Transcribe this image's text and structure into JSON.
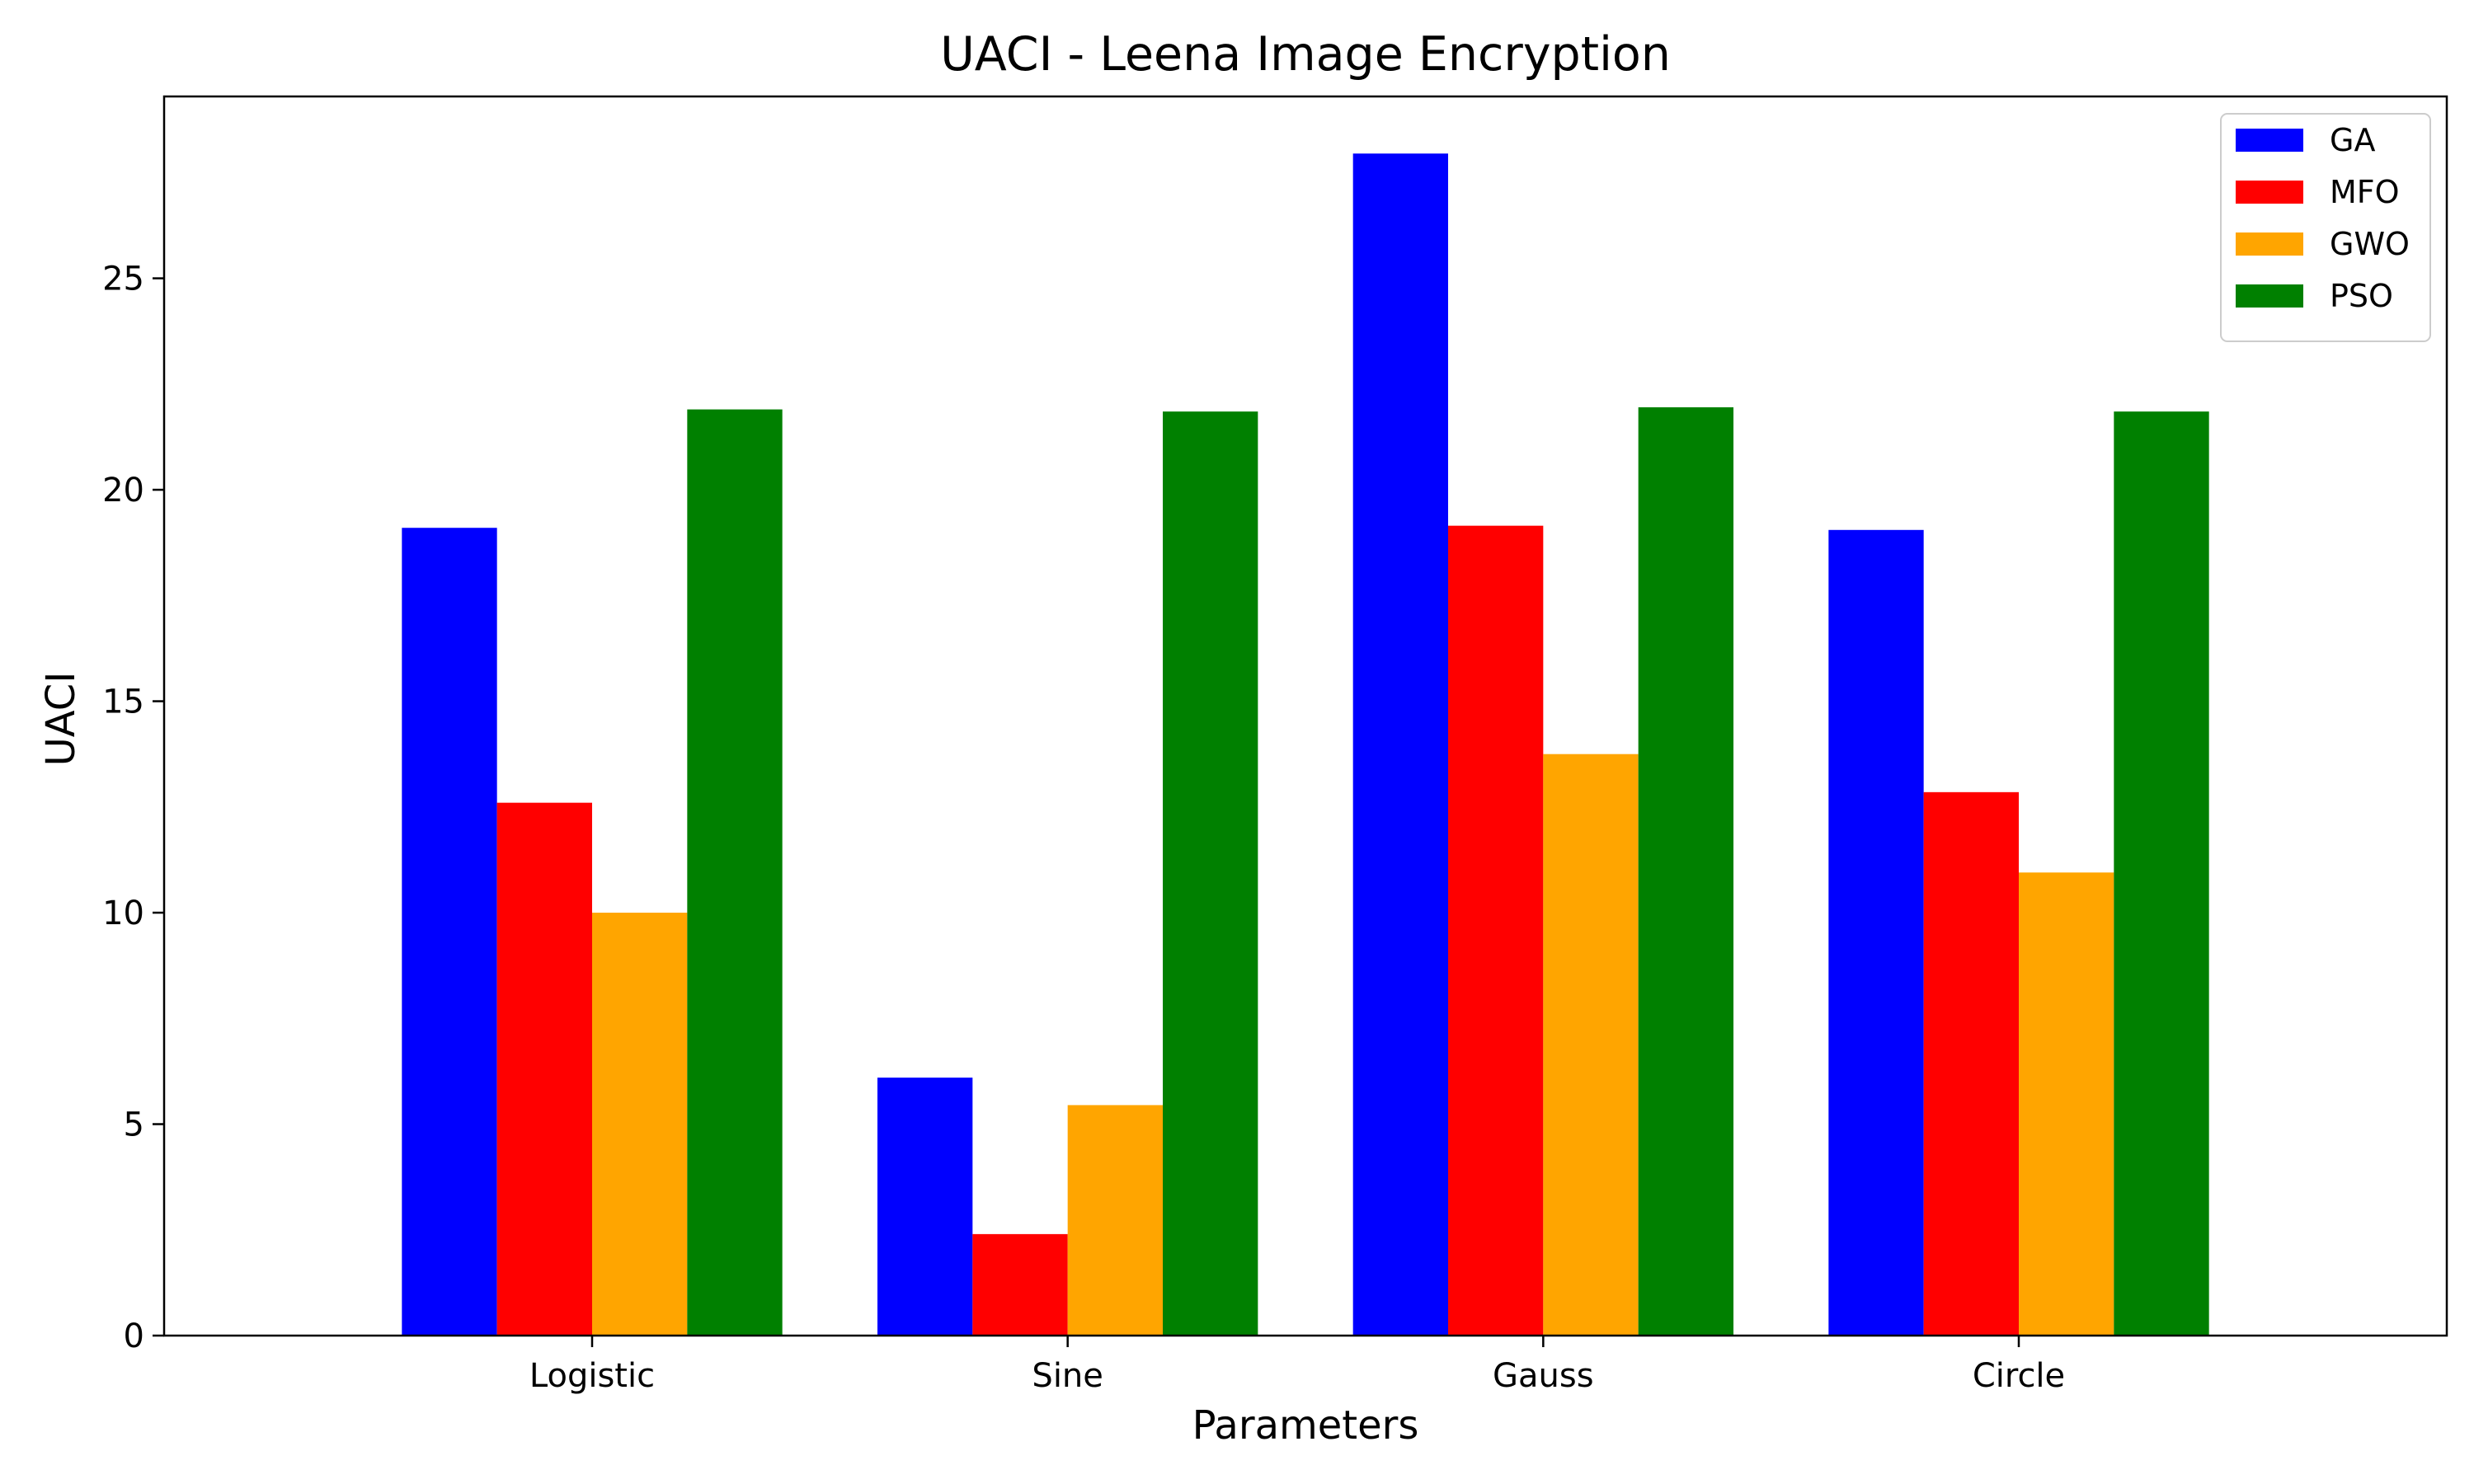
{
  "chart_data": {
    "type": "bar",
    "title": "UACI - Leena Image Encryption",
    "xlabel": "Parameters",
    "ylabel": "UACI",
    "categories": [
      "Logistic",
      "Sine",
      "Gauss",
      "Circle"
    ],
    "series": [
      {
        "name": "GA",
        "color": "#0000ff",
        "values": [
          19.1,
          6.1,
          27.95,
          19.05
        ]
      },
      {
        "name": "MFO",
        "color": "#ff0000",
        "values": [
          12.6,
          2.4,
          19.15,
          12.85
        ]
      },
      {
        "name": "GWO",
        "color": "#ffa500",
        "values": [
          10.0,
          5.45,
          13.75,
          10.95
        ]
      },
      {
        "name": "PSO",
        "color": "#008000",
        "values": [
          21.9,
          21.85,
          21.95,
          21.85
        ]
      }
    ],
    "ylim": [
      0,
      29.3
    ],
    "yticks": [
      0,
      5,
      10,
      15,
      20,
      25
    ],
    "grid": false,
    "legend_position": "top-right"
  }
}
